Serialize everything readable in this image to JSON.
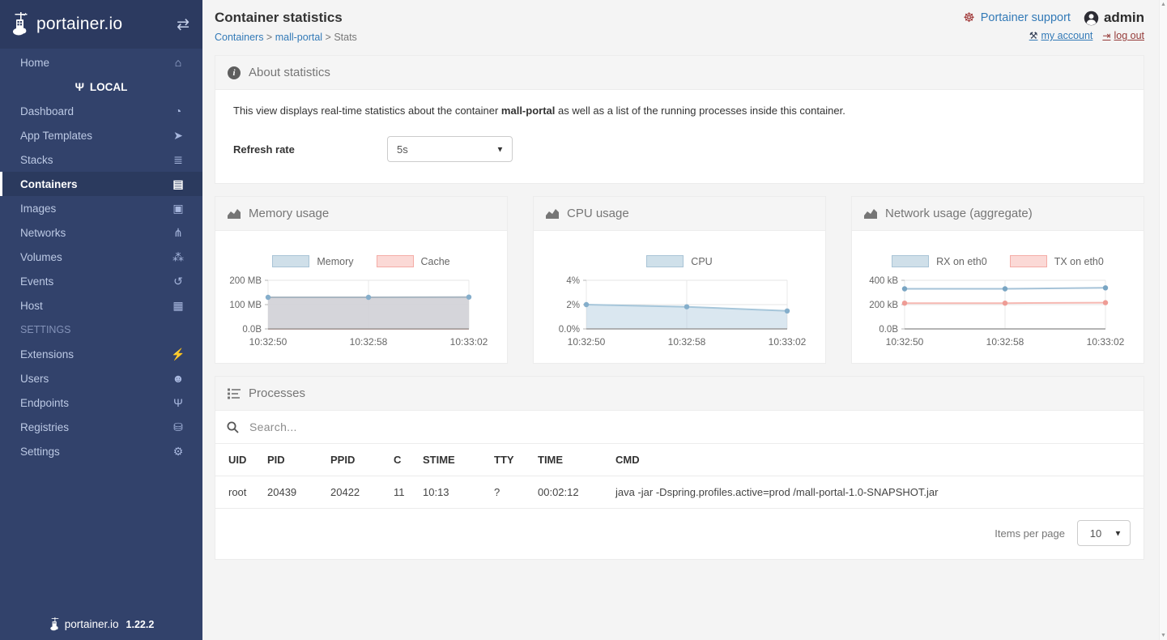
{
  "branding": {
    "logo_text": "portainer.io",
    "footer_logo_text": "portainer.io",
    "version": "1.22.2"
  },
  "sidebar": {
    "items": [
      {
        "type": "link",
        "label": "Home",
        "icon": "home-icon",
        "glyph": "⌂"
      },
      {
        "type": "endpoint",
        "label": "LOCAL",
        "icon": "plug-icon",
        "glyph": "Ψ"
      },
      {
        "type": "link",
        "label": "Dashboard",
        "icon": "dashboard-icon",
        "glyph": "◔"
      },
      {
        "type": "link",
        "label": "App Templates",
        "icon": "rocket-icon",
        "glyph": "➤"
      },
      {
        "type": "link",
        "label": "Stacks",
        "icon": "stacks-icon",
        "glyph": "≣"
      },
      {
        "type": "link",
        "label": "Containers",
        "icon": "containers-icon",
        "glyph": "▤",
        "active": true
      },
      {
        "type": "link",
        "label": "Images",
        "icon": "images-icon",
        "glyph": "▣"
      },
      {
        "type": "link",
        "label": "Networks",
        "icon": "sitemap-icon",
        "glyph": "⋔"
      },
      {
        "type": "link",
        "label": "Volumes",
        "icon": "volumes-icon",
        "glyph": "⁂"
      },
      {
        "type": "link",
        "label": "Events",
        "icon": "history-icon",
        "glyph": "↺"
      },
      {
        "type": "link",
        "label": "Host",
        "icon": "host-grid-icon",
        "glyph": "▦"
      },
      {
        "type": "section",
        "label": "SETTINGS"
      },
      {
        "type": "link",
        "label": "Extensions",
        "icon": "bolt-icon",
        "glyph": "⚡"
      },
      {
        "type": "link",
        "label": "Users",
        "icon": "users-icon",
        "glyph": "☻"
      },
      {
        "type": "link",
        "label": "Endpoints",
        "icon": "plug-icon",
        "glyph": "Ψ"
      },
      {
        "type": "link",
        "label": "Registries",
        "icon": "database-icon",
        "glyph": "⛁"
      },
      {
        "type": "link",
        "label": "Settings",
        "icon": "cogs-icon",
        "glyph": "⚙"
      }
    ]
  },
  "header": {
    "title": "Container statistics",
    "breadcrumb": [
      {
        "label": "Containers",
        "link": true
      },
      {
        "label": "mall-portal",
        "link": true
      },
      {
        "label": "Stats",
        "link": false
      }
    ],
    "separator": " > ",
    "support_label": "Portainer support",
    "username": "admin",
    "my_account_label": "my account",
    "log_out_label": "log out"
  },
  "about": {
    "title": "About statistics",
    "description_prefix": "This view displays real-time statistics about the container ",
    "container_name": "mall-portal",
    "description_suffix": " as well as a list of the running processes inside this container.",
    "refresh_rate_label": "Refresh rate",
    "refresh_rate_value": "5s"
  },
  "chart_data": [
    {
      "type": "line",
      "title": "Memory usage",
      "x": [
        "10:32:50",
        "10:32:58",
        "10:33:02"
      ],
      "unit": "MB",
      "ymax": 200,
      "ytick_labels": [
        "200 MB",
        "100 MB",
        "0.0B"
      ],
      "legend_position": "top",
      "grid": true,
      "series": [
        {
          "name": "Memory",
          "values": [
            130,
            130,
            131
          ],
          "filled": true,
          "show_points": true,
          "fill": "rgba(208,208,214,0.9)",
          "stroke": "#a9b6c1",
          "point": "#85aecb",
          "legend_fill": "#cfdfe9",
          "legend_border": "#a9c4d6"
        },
        {
          "name": "Cache",
          "values": [
            0,
            0,
            0
          ],
          "filled": true,
          "show_points": false,
          "fill": "rgba(244,172,166,0.4)",
          "stroke": "#f4aca6",
          "point": "#ef9d96",
          "legend_fill": "#fbd9d6",
          "legend_border": "#f4aca6"
        }
      ]
    },
    {
      "type": "line",
      "title": "CPU usage",
      "x": [
        "10:32:50",
        "10:32:58",
        "10:33:02"
      ],
      "unit": "%",
      "ymax": 4,
      "ytick_labels": [
        "4%",
        "2%",
        "0.0%"
      ],
      "legend_position": "top",
      "grid": true,
      "series": [
        {
          "name": "CPU",
          "values": [
            2.0,
            1.82,
            1.48
          ],
          "filled": true,
          "show_points": true,
          "fill": "rgba(173,202,222,0.45)",
          "stroke": "#a6c6da",
          "point": "#84aecb",
          "legend_fill": "#cfe0ea",
          "legend_border": "#a9c4d6"
        }
      ]
    },
    {
      "type": "line",
      "title": "Network usage (aggregate)",
      "x": [
        "10:32:50",
        "10:32:58",
        "10:33:02"
      ],
      "unit": "kB",
      "ymax": 400,
      "ytick_labels": [
        "400 kB",
        "200 kB",
        "0.0B"
      ],
      "legend_position": "top",
      "grid": true,
      "series": [
        {
          "name": "RX on eth0",
          "values": [
            330,
            330,
            338
          ],
          "filled": false,
          "show_points": true,
          "fill": "none",
          "stroke": "#a6c3d8",
          "point": "#79a5c3",
          "legend_fill": "#cfdfe9",
          "legend_border": "#a9c4d6"
        },
        {
          "name": "TX on eth0",
          "values": [
            212,
            212,
            216
          ],
          "filled": false,
          "show_points": true,
          "fill": "none",
          "stroke": "#f6b8b2",
          "point": "#ee9c95",
          "legend_fill": "#fbd9d6",
          "legend_border": "#f4aca6"
        }
      ]
    }
  ],
  "processes": {
    "title": "Processes",
    "search_placeholder": "Search...",
    "columns": [
      "UID",
      "PID",
      "PPID",
      "C",
      "STIME",
      "TTY",
      "TIME",
      "CMD"
    ],
    "rows": [
      [
        "root",
        "20439",
        "20422",
        "11",
        "10:13",
        "?",
        "00:02:12",
        "java -jar -Dspring.profiles.active=prod /mall-portal-1.0-SNAPSHOT.jar"
      ]
    ],
    "items_per_page_label": "Items per page",
    "items_per_page_value": "10"
  },
  "colors": {
    "sidebar_bg": "#32426b",
    "sidebar_header_bg": "#2c3a60",
    "link_blue": "#337ab7",
    "danger_red": "#953b39",
    "page_bg": "#f4f4f4",
    "widget_header_text": "#767676"
  }
}
